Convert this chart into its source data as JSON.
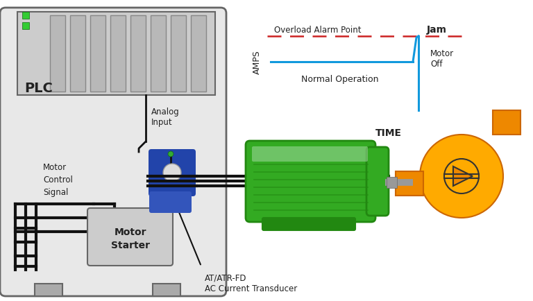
{
  "bg_color": "#ffffff",
  "cabinet_fill": "#e8e8e8",
  "cabinet_edge": "#666666",
  "plc_box_fill": "#cccccc",
  "plc_card_fill": "#b8b8b8",
  "plc_card_edge": "#888888",
  "led_green": "#33cc33",
  "ct_blue": "#2244aa",
  "ct_blue2": "#3355bb",
  "ct_hole_fill": "#dddddd",
  "ct_top_green": "#33aa33",
  "wire_color": "#111111",
  "starter_fill": "#cccccc",
  "starter_edge": "#666666",
  "motor_green": "#33aa22",
  "motor_green2": "#44bb33",
  "motor_dark": "#228811",
  "motor_stripe": "#aaddaa",
  "motor_base_fill": "#228811",
  "motor_shaft": "#999999",
  "pump_orange1": "#ffaa00",
  "pump_orange2": "#ee8800",
  "pump_dark": "#cc6600",
  "pump_sym_edge": "#333333",
  "graph_line": "#1199dd",
  "graph_alarm": "#cc2222",
  "text_color": "#222222",
  "graph_bg": "#ffffff",
  "footer_gray": "#aaaaaa",
  "plc_label": "PLC",
  "analog_label": "Analog\nInput",
  "motor_ctrl_label": "Motor\nControl\nSignal",
  "starter_label": "Motor\nStarter",
  "at_label": "AT/ATR-FD\nAC Current Transducer",
  "amps_label": "AMPS",
  "time_label": "TIME",
  "overload_label": "Overload Alarm Point",
  "jam_label": "Jam",
  "normal_label": "Normal Operation",
  "motor_off_label": "Motor\nOff"
}
